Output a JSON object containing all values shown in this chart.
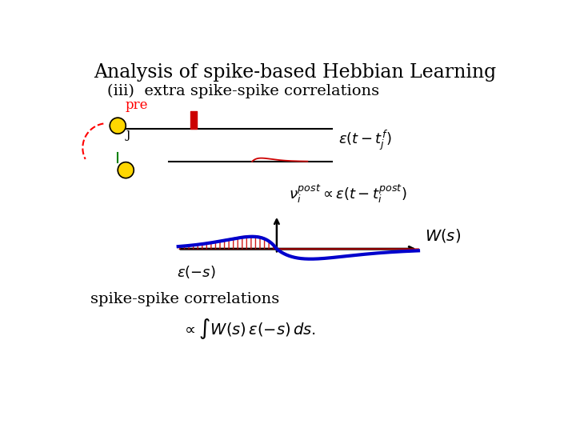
{
  "title": "Analysis of spike-based Hebbian Learning",
  "subtitle": "(iii)  extra spike-spike correlations",
  "label_pre": "pre",
  "label_j": "j",
  "label_epsilon_j": "$\\varepsilon(t-t_j^f)$",
  "label_v_post": "$\\nu_i^{post} \\propto \\varepsilon(t-t_i^{post})$",
  "label_Ws": "$W(s)$",
  "label_eps_neg_s": "$\\varepsilon(-s)$",
  "label_spike_corr": "spike-spike correlations",
  "label_integral": "$\\propto \\int W(s)\\,\\varepsilon(-s)\\,ds.$",
  "neuron_color": "#FFD700",
  "spike_color": "#CC0000",
  "blue_curve_color": "#0000CC",
  "red_curve_color": "#CC0000",
  "green_line_color": "#008000",
  "fill_color": "#FF9999"
}
